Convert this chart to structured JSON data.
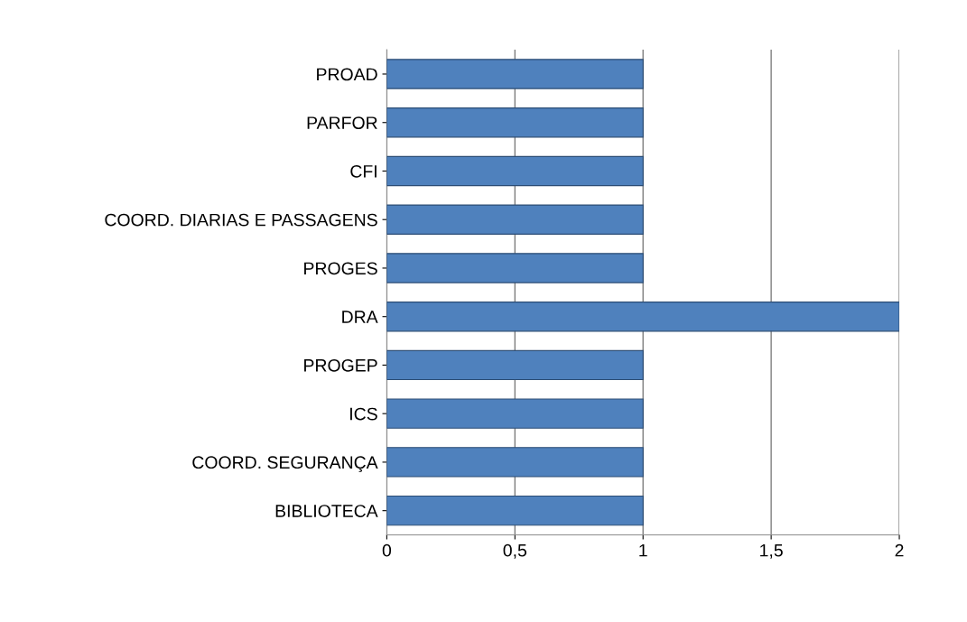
{
  "chart_data": {
    "type": "bar",
    "orientation": "horizontal",
    "categories": [
      "PROAD",
      "PARFOR",
      "CFI",
      "COORD. DIARIAS E PASSAGENS",
      "PROGES",
      "DRA",
      "PROGEP",
      "ICS",
      "COORD. SEGURANÇA",
      "BIBLIOTECA"
    ],
    "values": [
      1,
      1,
      1,
      1,
      1,
      2,
      1,
      1,
      1,
      1
    ],
    "color": "#4f81bd",
    "xlim": [
      0,
      2
    ],
    "xticks": [
      0,
      {
        "value": 0.5,
        "label": "0,5"
      },
      1,
      {
        "value": 1.5,
        "label": "1,5"
      },
      2
    ],
    "grid": "x"
  }
}
